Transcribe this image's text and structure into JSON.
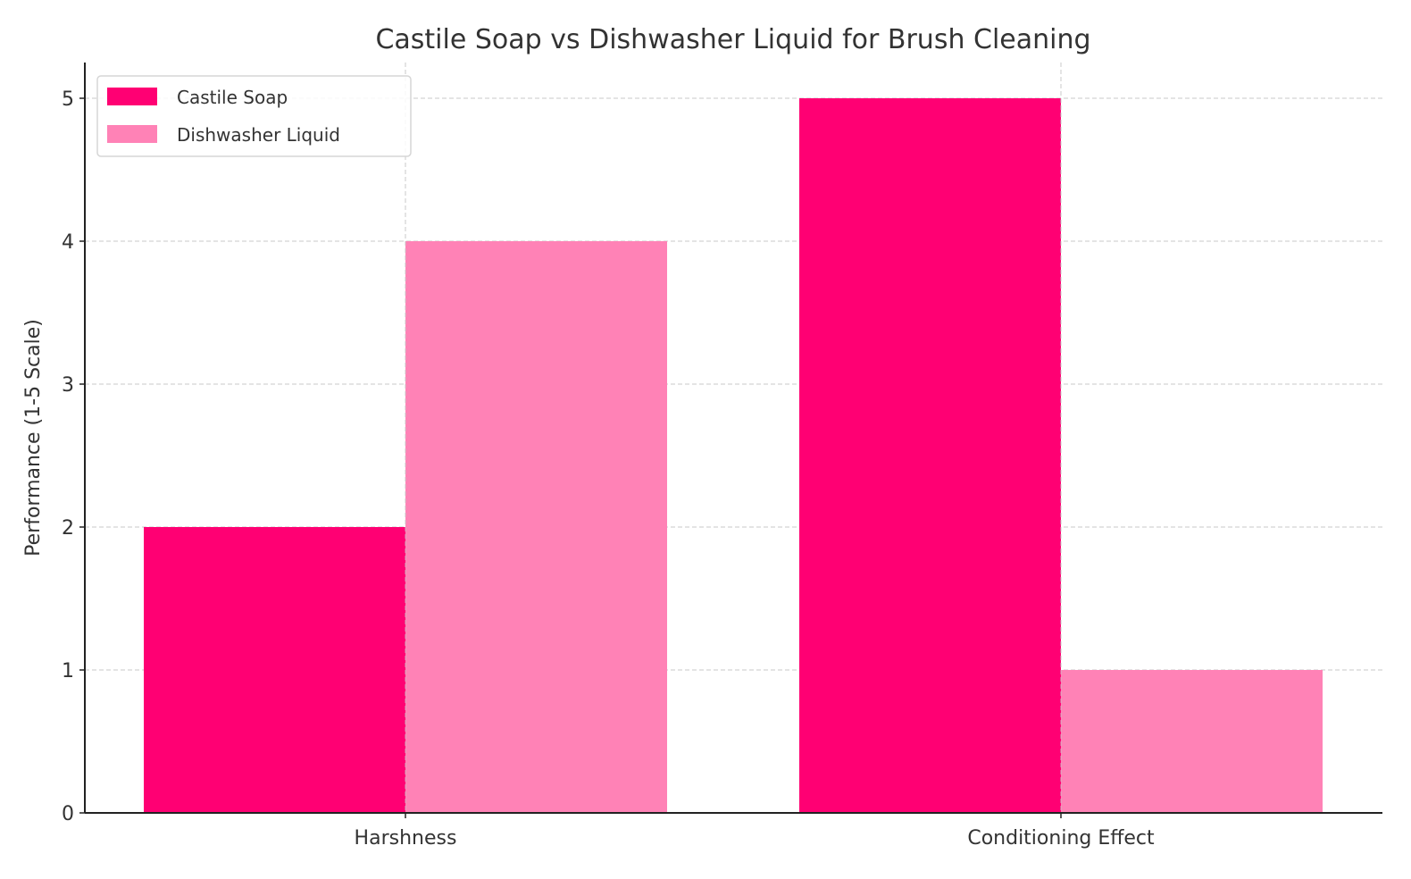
{
  "chart_data": {
    "type": "bar",
    "title": "Castile Soap vs Dishwasher Liquid for Brush Cleaning",
    "xlabel": "",
    "ylabel": "Performance (1-5 Scale)",
    "categories": [
      "Harshness",
      "Conditioning Effect"
    ],
    "series": [
      {
        "name": "Castile Soap",
        "values": [
          2,
          5
        ],
        "color": "#FF0073"
      },
      {
        "name": "Dishwasher Liquid",
        "values": [
          4,
          1
        ],
        "color": "#FF82B6"
      }
    ],
    "ylim": [
      0,
      5.25
    ],
    "yticks": [
      0,
      1,
      2,
      3,
      4,
      5
    ],
    "grid": true,
    "legend": "top-left"
  }
}
